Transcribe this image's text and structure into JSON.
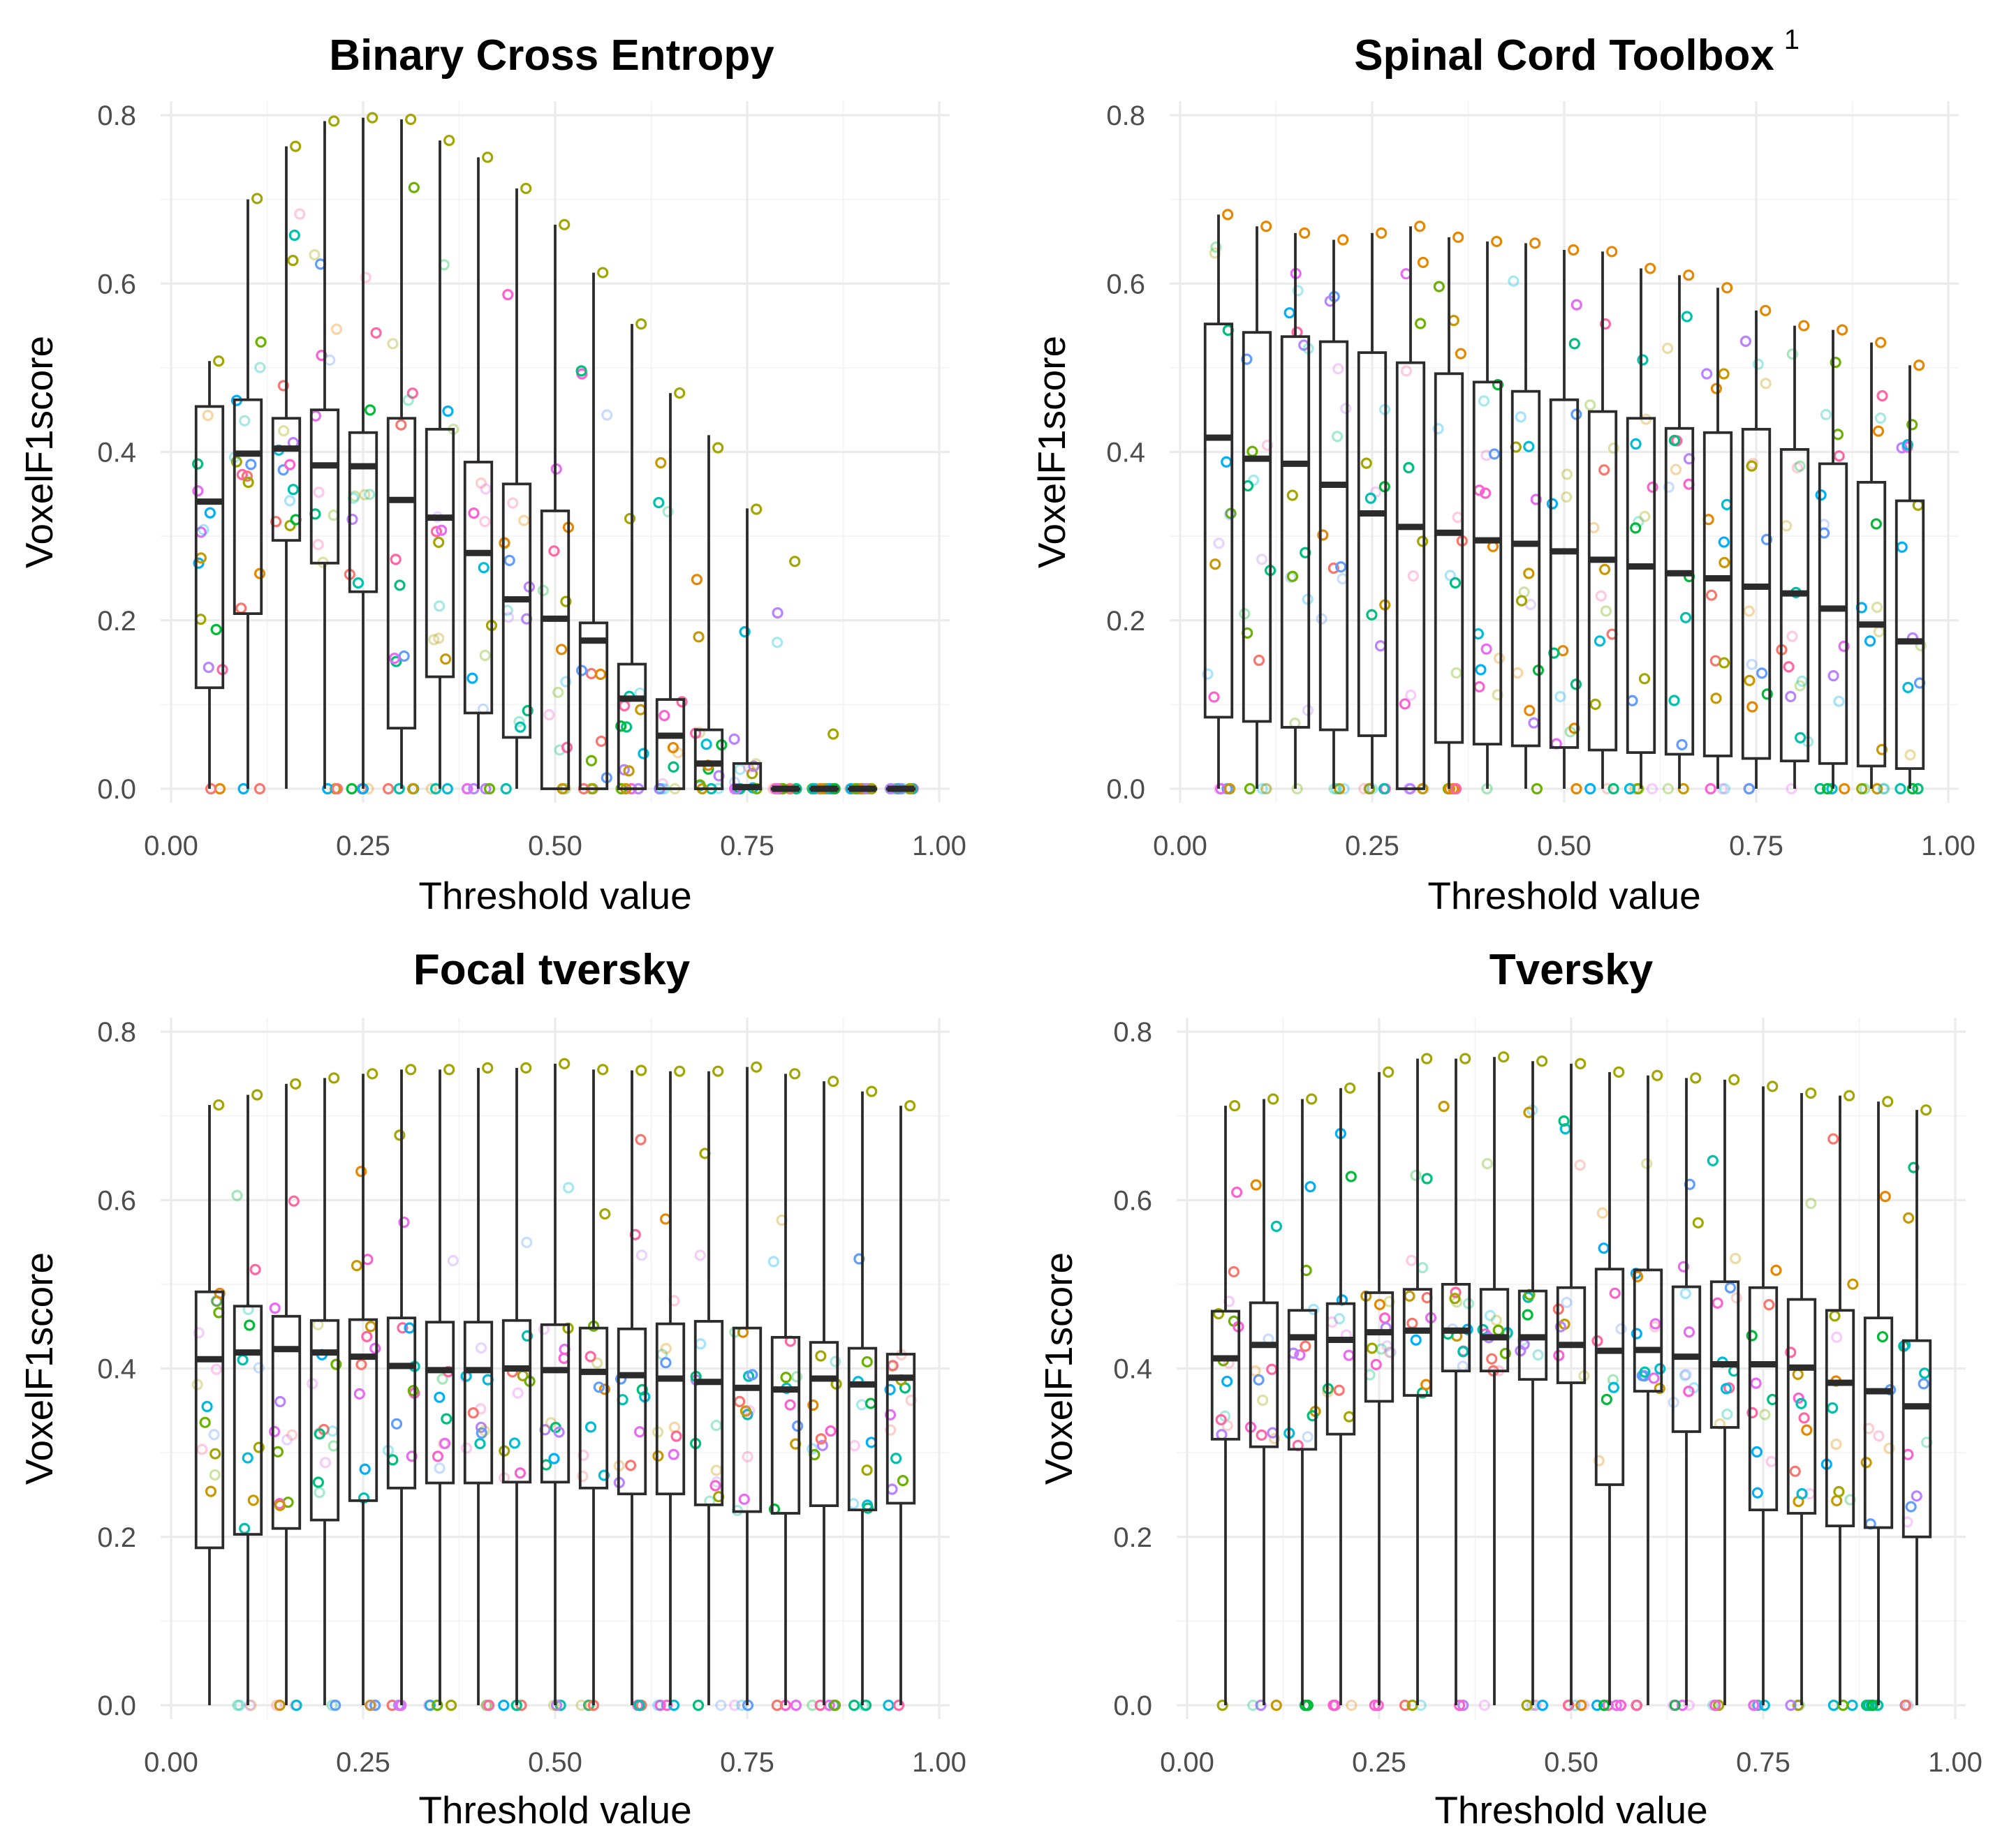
{
  "colors": {
    "strong": [
      "#F8766D",
      "#E58700",
      "#C99800",
      "#A3A500",
      "#6BB100",
      "#00BA38",
      "#00BF7D",
      "#00C0AF",
      "#00BCD8",
      "#00B0F6",
      "#619CFF",
      "#B983FF",
      "#E76BF3",
      "#FD61D1",
      "#FF67A4"
    ],
    "box": "#2b2b2b",
    "grid": "#ebebeb"
  },
  "chart_data": [
    {
      "type": "box",
      "title": "Binary Cross Entropy",
      "superscript": "",
      "xlabel": "Threshold value",
      "ylabel": "VoxelF1score",
      "xlim": [
        0,
        1
      ],
      "ylim": [
        0,
        0.8
      ],
      "xticks": [
        "0.00",
        "0.25",
        "0.50",
        "0.75",
        "1.00"
      ],
      "yticks": [
        "0.0",
        "0.2",
        "0.4",
        "0.6",
        "0.8"
      ],
      "x": [
        0.05,
        0.1,
        0.15,
        0.2,
        0.25,
        0.3,
        0.35,
        0.4,
        0.45,
        0.5,
        0.55,
        0.6,
        0.65,
        0.7,
        0.75,
        0.8,
        0.85,
        0.9,
        0.95
      ],
      "q1": [
        0.12,
        0.208,
        0.295,
        0.268,
        0.234,
        0.072,
        0.133,
        0.09,
        0.061,
        0.0,
        0.0,
        0.0,
        0.0,
        0.0,
        0.0,
        0.0,
        0.0,
        0.0,
        0.0
      ],
      "median": [
        0.341,
        0.398,
        0.404,
        0.384,
        0.383,
        0.343,
        0.322,
        0.28,
        0.225,
        0.202,
        0.176,
        0.107,
        0.063,
        0.03,
        0.002,
        0.0,
        0.0,
        0.0,
        0.0
      ],
      "q3": [
        0.454,
        0.462,
        0.44,
        0.45,
        0.423,
        0.44,
        0.427,
        0.388,
        0.362,
        0.33,
        0.197,
        0.148,
        0.106,
        0.07,
        0.03,
        0.0,
        0.0,
        0.0,
        0.0
      ],
      "whisker_low": [
        0,
        0,
        0,
        0,
        0,
        0,
        0,
        0,
        0,
        0,
        0,
        0,
        0,
        0,
        0,
        0,
        0,
        0,
        0
      ],
      "whisker_high": [
        0.508,
        0.7,
        0.763,
        0.793,
        0.797,
        0.795,
        0.77,
        0.75,
        0.713,
        0.67,
        0.613,
        0.552,
        0.47,
        0.42,
        0.333,
        0.0,
        0.0,
        0.0,
        0.0
      ],
      "top_point": [
        0.508,
        0.701,
        0.763,
        0.793,
        0.797,
        0.795,
        0.77,
        0.75,
        0.713,
        0.67,
        0.613,
        0.552,
        0.47,
        0.405,
        0.332,
        0.27,
        0.065,
        0.0,
        0.0
      ]
    },
    {
      "type": "box",
      "title": "Spinal Cord Toolbox",
      "superscript": "1",
      "xlabel": "Threshold value",
      "ylabel": "VoxelF1score",
      "xlim": [
        0,
        1
      ],
      "ylim": [
        0,
        0.8
      ],
      "xticks": [
        "0.00",
        "0.25",
        "0.50",
        "0.75",
        "1.00"
      ],
      "yticks": [
        "0.0",
        "0.2",
        "0.4",
        "0.6",
        "0.8"
      ],
      "x": [
        0.05,
        0.1,
        0.15,
        0.2,
        0.25,
        0.3,
        0.35,
        0.4,
        0.45,
        0.5,
        0.55,
        0.6,
        0.65,
        0.7,
        0.75,
        0.8,
        0.85,
        0.9,
        0.95
      ],
      "q1": [
        0.085,
        0.08,
        0.073,
        0.07,
        0.063,
        0.0,
        0.055,
        0.053,
        0.051,
        0.049,
        0.046,
        0.043,
        0.041,
        0.039,
        0.036,
        0.033,
        0.03,
        0.027,
        0.024
      ],
      "median": [
        0.417,
        0.392,
        0.386,
        0.361,
        0.327,
        0.311,
        0.304,
        0.295,
        0.291,
        0.282,
        0.272,
        0.264,
        0.256,
        0.25,
        0.24,
        0.232,
        0.214,
        0.195,
        0.175
      ],
      "q3": [
        0.552,
        0.542,
        0.537,
        0.531,
        0.518,
        0.506,
        0.493,
        0.483,
        0.472,
        0.462,
        0.448,
        0.44,
        0.428,
        0.423,
        0.427,
        0.403,
        0.386,
        0.364,
        0.342
      ],
      "whisker_low": [
        0,
        0,
        0,
        0,
        0,
        0,
        0,
        0,
        0,
        0,
        0,
        0,
        0,
        0,
        0,
        0,
        0,
        0,
        0
      ],
      "whisker_high": [
        0.682,
        0.668,
        0.66,
        0.652,
        0.66,
        0.668,
        0.655,
        0.65,
        0.648,
        0.64,
        0.638,
        0.618,
        0.61,
        0.595,
        0.568,
        0.55,
        0.545,
        0.53,
        0.503
      ],
      "top_point": [
        0.682,
        0.668,
        0.66,
        0.652,
        0.66,
        0.668,
        0.655,
        0.65,
        0.648,
        0.64,
        0.638,
        0.618,
        0.61,
        0.595,
        0.568,
        0.55,
        0.545,
        0.53,
        0.503
      ]
    },
    {
      "type": "box",
      "title": "Focal tversky",
      "superscript": "",
      "xlabel": "Threshold value",
      "ylabel": "VoxelF1score",
      "xlim": [
        0,
        1
      ],
      "ylim": [
        0,
        0.8
      ],
      "xticks": [
        "0.00",
        "0.25",
        "0.50",
        "0.75",
        "1.00"
      ],
      "yticks": [
        "0.0",
        "0.2",
        "0.4",
        "0.6",
        "0.8"
      ],
      "x": [
        0.05,
        0.1,
        0.15,
        0.2,
        0.25,
        0.3,
        0.35,
        0.4,
        0.45,
        0.5,
        0.55,
        0.6,
        0.65,
        0.7,
        0.75,
        0.8,
        0.85,
        0.9,
        0.95
      ],
      "q1": [
        0.187,
        0.203,
        0.21,
        0.22,
        0.243,
        0.258,
        0.264,
        0.264,
        0.265,
        0.265,
        0.258,
        0.251,
        0.251,
        0.238,
        0.23,
        0.228,
        0.237,
        0.232,
        0.24
      ],
      "median": [
        0.411,
        0.419,
        0.423,
        0.419,
        0.414,
        0.403,
        0.398,
        0.398,
        0.4,
        0.398,
        0.396,
        0.392,
        0.388,
        0.384,
        0.377,
        0.375,
        0.388,
        0.381,
        0.389
      ],
      "q3": [
        0.491,
        0.474,
        0.462,
        0.457,
        0.458,
        0.46,
        0.455,
        0.455,
        0.457,
        0.452,
        0.448,
        0.447,
        0.453,
        0.456,
        0.448,
        0.437,
        0.431,
        0.424,
        0.417
      ],
      "whisker_low": [
        0,
        0,
        0,
        0,
        0,
        0,
        0,
        0,
        0,
        0,
        0,
        0,
        0,
        0,
        0,
        0,
        0,
        0,
        0
      ],
      "whisker_high": [
        0.713,
        0.725,
        0.738,
        0.745,
        0.75,
        0.755,
        0.755,
        0.757,
        0.757,
        0.762,
        0.755,
        0.754,
        0.753,
        0.753,
        0.758,
        0.75,
        0.741,
        0.729,
        0.712
      ],
      "top_point": [
        0.713,
        0.725,
        0.738,
        0.745,
        0.75,
        0.755,
        0.755,
        0.757,
        0.757,
        0.762,
        0.755,
        0.754,
        0.753,
        0.753,
        0.758,
        0.75,
        0.741,
        0.729,
        0.712
      ]
    },
    {
      "type": "box",
      "title": "Tversky",
      "superscript": "",
      "xlabel": "Threshold value",
      "ylabel": "VoxelF1score",
      "xlim": [
        0,
        1
      ],
      "ylim": [
        0,
        0.8
      ],
      "xticks": [
        "0.00",
        "0.25",
        "0.50",
        "0.75",
        "1.00"
      ],
      "yticks": [
        "0.0",
        "0.2",
        "0.4",
        "0.6",
        "0.8"
      ],
      "x": [
        0.05,
        0.1,
        0.15,
        0.2,
        0.25,
        0.3,
        0.35,
        0.4,
        0.45,
        0.5,
        0.55,
        0.6,
        0.65,
        0.7,
        0.75,
        0.8,
        0.85,
        0.9,
        0.95
      ],
      "q1": [
        0.316,
        0.307,
        0.304,
        0.322,
        0.361,
        0.368,
        0.397,
        0.397,
        0.387,
        0.383,
        0.262,
        0.373,
        0.325,
        0.33,
        0.232,
        0.228,
        0.213,
        0.211,
        0.2
      ],
      "median": [
        0.412,
        0.428,
        0.437,
        0.434,
        0.443,
        0.445,
        0.445,
        0.437,
        0.437,
        0.428,
        0.421,
        0.422,
        0.414,
        0.405,
        0.405,
        0.401,
        0.383,
        0.373,
        0.355
      ],
      "q3": [
        0.468,
        0.478,
        0.469,
        0.477,
        0.49,
        0.494,
        0.5,
        0.494,
        0.492,
        0.496,
        0.518,
        0.517,
        0.497,
        0.503,
        0.496,
        0.482,
        0.469,
        0.46,
        0.433
      ],
      "whisker_low": [
        0,
        0,
        0,
        0,
        0,
        0,
        0,
        0,
        0,
        0,
        0,
        0,
        0,
        0,
        0,
        0,
        0,
        0,
        0
      ],
      "whisker_high": [
        0.712,
        0.72,
        0.72,
        0.733,
        0.752,
        0.768,
        0.768,
        0.77,
        0.765,
        0.762,
        0.752,
        0.748,
        0.745,
        0.743,
        0.735,
        0.727,
        0.724,
        0.717,
        0.707
      ],
      "top_point": [
        0.712,
        0.72,
        0.72,
        0.733,
        0.752,
        0.768,
        0.768,
        0.77,
        0.765,
        0.762,
        0.752,
        0.748,
        0.745,
        0.743,
        0.735,
        0.727,
        0.724,
        0.717,
        0.707
      ]
    }
  ]
}
